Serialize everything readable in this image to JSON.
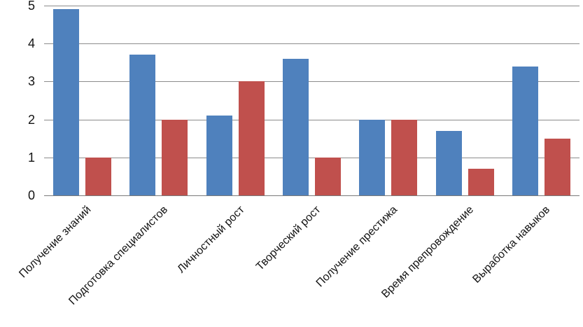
{
  "chart_data": {
    "type": "bar",
    "categories": [
      "Получение знаний",
      "Подготовка специалистов",
      "Личностный рост",
      "Творческий рост",
      "Получение престижа",
      "Время препровождение",
      "Выработка навыков"
    ],
    "series": [
      {
        "color": "#4F81BD",
        "values": [
          4.9,
          3.7,
          2.1,
          3.6,
          2.0,
          1.7,
          3.4
        ]
      },
      {
        "color": "#C0504D",
        "values": [
          1.0,
          2.0,
          3.0,
          1.0,
          2.0,
          0.7,
          1.5
        ]
      }
    ],
    "ylim": [
      0,
      5
    ],
    "yticks": [
      "0",
      "1",
      "2",
      "3",
      "4",
      "5"
    ],
    "grid": true,
    "legend": false,
    "xlabel_rotation_deg": -45
  },
  "colors": {
    "background": "#FFFFFF",
    "gridline": "#8C8C8C",
    "axis": "#7A7A7A",
    "text": "#141414"
  }
}
